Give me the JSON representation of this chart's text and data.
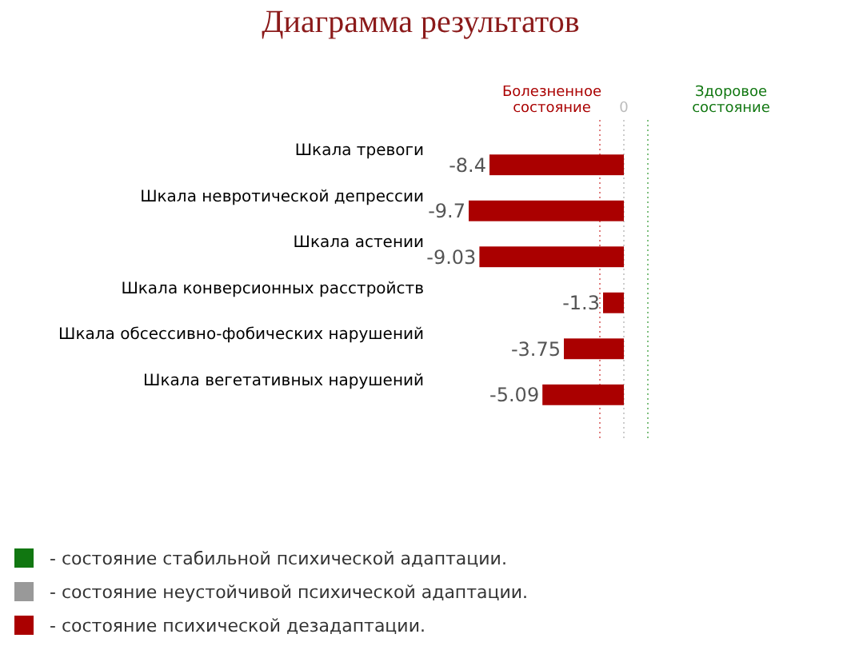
{
  "chart_data": {
    "type": "bar",
    "orientation": "horizontal",
    "title": "Диаграмма результатов",
    "categories": [
      "Шкала тревоги",
      "Шкала невротической депрессии",
      "Шкала астении",
      "Шкала конверсионных расстройств",
      "Шкала обсессивно-фобических нарушений",
      "Шкала вегетативных нарушений"
    ],
    "series": [
      {
        "name": "- состояние стабильной психической адаптации.",
        "color": "#117711",
        "values": [
          null,
          null,
          null,
          null,
          null,
          null
        ]
      },
      {
        "name": "- состояние неустойчивой психической адаптации.",
        "color": "#999999",
        "values": [
          null,
          null,
          null,
          null,
          null,
          null
        ]
      },
      {
        "name": "- состояние психической дезадаптации.",
        "color": "#aa0000",
        "values": [
          -8.4,
          -9.7,
          -9.03,
          -1.3,
          -3.75,
          -5.09
        ]
      }
    ],
    "data_labels": true,
    "legend": "bottom",
    "ref_lines": [
      {
        "axis": "x",
        "value": -1.5,
        "color": "#e08080",
        "line_style": "dotted"
      },
      {
        "axis": "x",
        "value": 1.5,
        "color": "#80c080",
        "line_style": "dotted"
      }
    ],
    "annotations": [
      "Болезненное состояние",
      "Здоровое состояние",
      "0"
    ]
  }
}
